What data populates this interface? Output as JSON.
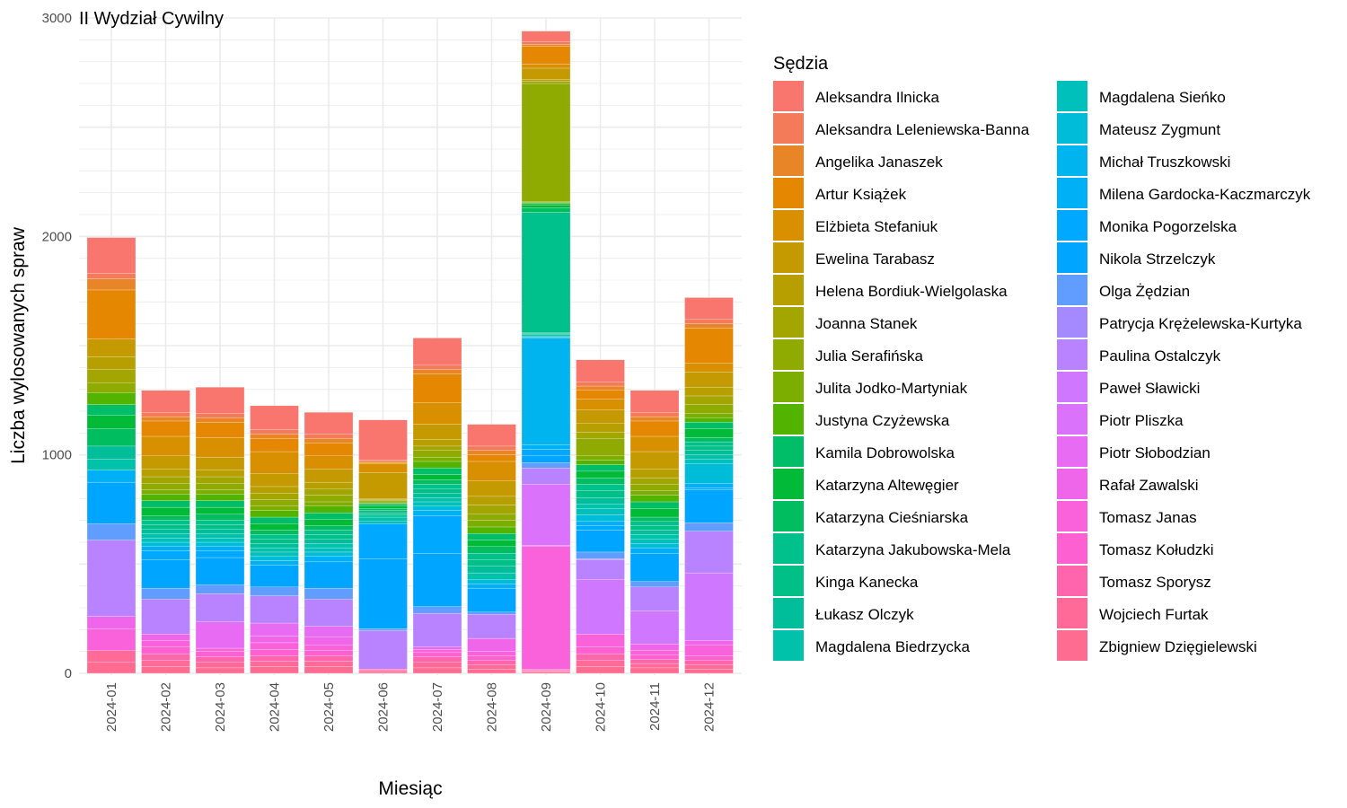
{
  "chart_data": {
    "type": "bar",
    "stacked": true,
    "title": "II Wydział Cywilny",
    "xlabel": "Miesiąc",
    "ylabel": "Liczba wylosowanych spraw",
    "ylim": [
      0,
      3000
    ],
    "yticks": [
      0,
      1000,
      2000,
      3000
    ],
    "grid": true,
    "legend_title": "Sędzia",
    "legend_position": "right",
    "categories": [
      "2024-01",
      "2024-02",
      "2024-03",
      "2024-04",
      "2024-05",
      "2024-06",
      "2024-07",
      "2024-08",
      "2024-09",
      "2024-10",
      "2024-11",
      "2024-12"
    ],
    "series": [
      {
        "name": "Zbigniew Dzięgielewski",
        "color": "#FF6C91",
        "values": [
          50,
          30,
          25,
          30,
          30,
          8,
          25,
          20,
          5,
          30,
          25,
          20
        ]
      },
      {
        "name": "Wojciech Furtak",
        "color": "#FF6A98",
        "values": [
          55,
          30,
          25,
          25,
          25,
          6,
          25,
          20,
          5,
          30,
          20,
          20
        ]
      },
      {
        "name": "Tomasz Sporysz",
        "color": "#FF65AC",
        "values": [
          0,
          30,
          25,
          25,
          25,
          6,
          25,
          20,
          5,
          30,
          20,
          20
        ]
      },
      {
        "name": "Tomasz Kołudzki",
        "color": "#FD61D1",
        "values": [
          0,
          30,
          25,
          30,
          25,
          0,
          20,
          20,
          5,
          30,
          20,
          20
        ]
      },
      {
        "name": "Tomasz Janas",
        "color": "#FA62DB",
        "values": [
          100,
          30,
          15,
          30,
          25,
          0,
          15,
          20,
          560,
          60,
          20,
          50
        ]
      },
      {
        "name": "Rafał Zawalski",
        "color": "#F066EA",
        "values": [
          55,
          30,
          0,
          30,
          35,
          0,
          10,
          60,
          0,
          0,
          30,
          20
        ]
      },
      {
        "name": "Piotr Słobodzian",
        "color": "#E76BF3",
        "values": [
          0,
          0,
          120,
          60,
          50,
          0,
          0,
          0,
          5,
          0,
          0,
          0
        ]
      },
      {
        "name": "Piotr Pliszka",
        "color": "#DB72FB",
        "values": [
          0,
          0,
          0,
          0,
          0,
          0,
          0,
          0,
          280,
          0,
          0,
          0
        ]
      },
      {
        "name": "Paweł Sławicki",
        "color": "#CF78FF",
        "values": [
          0,
          0,
          0,
          0,
          0,
          0,
          0,
          0,
          0,
          250,
          150,
          310
        ]
      },
      {
        "name": "Paulina Ostalczyk",
        "color": "#B983FF",
        "values": [
          350,
          160,
          130,
          125,
          125,
          175,
          155,
          110,
          75,
          90,
          110,
          190
        ]
      },
      {
        "name": "Patrycja Krężelewska-Kurtyka",
        "color": "#A58AFF",
        "values": [
          0,
          0,
          0,
          0,
          0,
          0,
          0,
          0,
          0,
          5,
          0,
          0
        ]
      },
      {
        "name": "Olga Żędzian",
        "color": "#619CFF",
        "values": [
          75,
          50,
          40,
          40,
          50,
          10,
          30,
          10,
          25,
          30,
          25,
          40
        ]
      },
      {
        "name": "Nikola Strzelczyk",
        "color": "#00A5FF",
        "values": [
          190,
          130,
          125,
          100,
          120,
          320,
          245,
          110,
          30,
          100,
          130,
          150
        ]
      },
      {
        "name": "Monika Pogorzelska",
        "color": "#00A9FF",
        "values": [
          0,
          40,
          30,
          0,
          0,
          160,
          170,
          0,
          30,
          20,
          0,
          10
        ]
      },
      {
        "name": "Milena Gardocka-Kaczmarczyk",
        "color": "#00B0F6",
        "values": [
          55,
          20,
          20,
          20,
          25,
          0,
          25,
          20,
          20,
          20,
          25,
          20
        ]
      },
      {
        "name": "Michał Truszkowski",
        "color": "#00B4EF",
        "values": [
          0,
          0,
          0,
          0,
          0,
          0,
          0,
          0,
          490,
          0,
          0,
          0
        ]
      },
      {
        "name": "Mateusz Zygmunt",
        "color": "#00BCD8",
        "values": [
          0,
          20,
          20,
          20,
          20,
          0,
          20,
          20,
          5,
          30,
          20,
          90
        ]
      },
      {
        "name": "Magdalena Sieńko",
        "color": "#00C0BB",
        "values": [
          0,
          20,
          20,
          20,
          20,
          10,
          20,
          0,
          5,
          30,
          20,
          20
        ]
      },
      {
        "name": "Magdalena Biedrzycka",
        "color": "#00C1AA",
        "values": [
          50,
          20,
          20,
          20,
          20,
          20,
          20,
          30,
          5,
          20,
          20,
          20
        ]
      },
      {
        "name": "Łukasz Olczyk",
        "color": "#00BE99",
        "values": [
          60,
          20,
          20,
          20,
          20,
          10,
          20,
          30,
          5,
          30,
          20,
          20
        ]
      },
      {
        "name": "Kinga Kanecka",
        "color": "#00C087",
        "values": [
          0,
          20,
          20,
          20,
          20,
          10,
          20,
          30,
          5,
          30,
          20,
          20
        ]
      },
      {
        "name": "Katarzyna Jakubowska-Mela",
        "color": "#00C08B",
        "values": [
          0,
          20,
          20,
          20,
          20,
          10,
          20,
          30,
          550,
          30,
          20,
          20
        ]
      },
      {
        "name": "Katarzyna Cieśniarska",
        "color": "#00BD5F",
        "values": [
          80,
          20,
          30,
          20,
          20,
          10,
          20,
          30,
          20,
          30,
          20,
          20
        ]
      },
      {
        "name": "Katarzyna Altewęgier",
        "color": "#00BA38",
        "values": [
          60,
          40,
          30,
          30,
          30,
          10,
          25,
          30,
          15,
          30,
          40,
          40
        ]
      },
      {
        "name": "Kamila Dobrowolska",
        "color": "#00BE67",
        "values": [
          50,
          30,
          30,
          30,
          30,
          10,
          30,
          30,
          5,
          30,
          30,
          30
        ]
      },
      {
        "name": "Justyna Czyżewska",
        "color": "#53B400",
        "values": [
          55,
          30,
          30,
          30,
          30,
          5,
          30,
          30,
          5,
          20,
          30,
          20
        ]
      },
      {
        "name": "Julita Jodko-Martyniak",
        "color": "#7CAE00",
        "values": [
          0,
          20,
          20,
          20,
          20,
          5,
          20,
          30,
          5,
          20,
          20,
          20
        ]
      },
      {
        "name": "Julia Serafińska",
        "color": "#8FAA00",
        "values": [
          45,
          30,
          30,
          30,
          30,
          5,
          30,
          30,
          540,
          80,
          30,
          40
        ]
      },
      {
        "name": "Joanna Stanek",
        "color": "#A3A500",
        "values": [
          60,
          30,
          30,
          30,
          30,
          5,
          20,
          40,
          10,
          30,
          30,
          40
        ]
      },
      {
        "name": "Helena Bordiuk-Wielgolaska",
        "color": "#B79F00",
        "values": [
          60,
          35,
          30,
          30,
          30,
          5,
          30,
          40,
          10,
          40,
          40,
          40
        ]
      },
      {
        "name": "Ewelina Tarabasz",
        "color": "#C49A00",
        "values": [
          80,
          60,
          60,
          60,
          60,
          120,
          70,
          70,
          50,
          60,
          80,
          70
        ]
      },
      {
        "name": "Elżbieta Stefaniuk",
        "color": "#D89000",
        "values": [
          0,
          90,
          90,
          100,
          60,
          40,
          100,
          90,
          20,
          50,
          70,
          40
        ]
      },
      {
        "name": "Artur Książek",
        "color": "#E58700",
        "values": [
          225,
          70,
          70,
          60,
          60,
          5,
          130,
          30,
          80,
          40,
          70,
          160
        ]
      },
      {
        "name": "Angelika Janaszek",
        "color": "#E88526",
        "values": [
          50,
          20,
          20,
          20,
          20,
          5,
          20,
          20,
          10,
          20,
          20,
          20
        ]
      },
      {
        "name": "Aleksandra Leleniewska-Banna",
        "color": "#F37B59",
        "values": [
          25,
          20,
          20,
          20,
          20,
          5,
          20,
          20,
          10,
          20,
          20,
          20
        ]
      },
      {
        "name": "Aleksandra Ilnicka",
        "color": "#F8766D",
        "values": [
          165,
          100,
          120,
          110,
          100,
          185,
          125,
          100,
          50,
          100,
          100,
          100
        ]
      }
    ],
    "legend_order": [
      "Aleksandra Ilnicka",
      "Aleksandra Leleniewska-Banna",
      "Angelika Janaszek",
      "Artur Książek",
      "Elżbieta Stefaniuk",
      "Ewelina Tarabasz",
      "Helena Bordiuk-Wielgolaska",
      "Joanna Stanek",
      "Julia Serafińska",
      "Julita Jodko-Martyniak",
      "Justyna Czyżewska",
      "Kamila Dobrowolska",
      "Katarzyna Altewęgier",
      "Katarzyna Cieśniarska",
      "Katarzyna Jakubowska-Mela",
      "Kinga Kanecka",
      "Łukasz Olczyk",
      "Magdalena Biedrzycka",
      "Magdalena Sieńko",
      "Mateusz Zygmunt",
      "Michał Truszkowski",
      "Milena Gardocka-Kaczmarczyk",
      "Monika Pogorzelska",
      "Nikola Strzelczyk",
      "Olga Żędzian",
      "Patrycja Krężelewska-Kurtyka",
      "Paulina Ostalczyk",
      "Paweł Sławicki",
      "Piotr Pliszka",
      "Piotr Słobodzian",
      "Rafał Zawalski",
      "Tomasz Janas",
      "Tomasz Kołudzki",
      "Tomasz Sporysz",
      "Wojciech Furtak",
      "Zbigniew Dzięgielewski"
    ]
  }
}
